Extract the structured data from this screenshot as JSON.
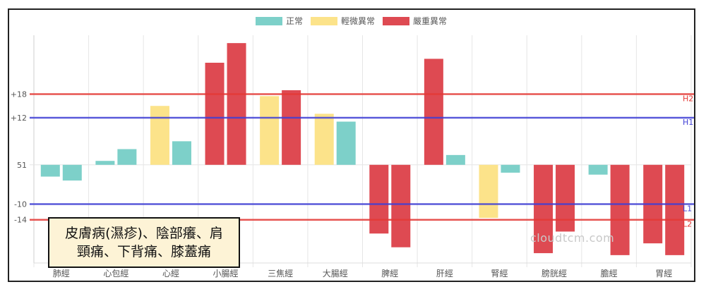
{
  "chart_data": {
    "type": "bar",
    "categories": [
      "肺經",
      "心包經",
      "心經",
      "小腸經",
      "三焦經",
      "大腸經",
      "脾經",
      "肝經",
      "腎經",
      "膀胱經",
      "膽經",
      "胃經"
    ],
    "legend": [
      {
        "name": "正常",
        "color": "#7dd0c9"
      },
      {
        "name": "輕微異常",
        "color": "#fce38a"
      },
      {
        "name": "嚴重異常",
        "color": "#de4a52"
      }
    ],
    "bars": [
      [
        {
          "v": -3,
          "c": 0
        },
        {
          "v": -4,
          "c": 0
        }
      ],
      [
        {
          "v": 1,
          "c": 0
        },
        {
          "v": 4,
          "c": 0
        }
      ],
      [
        {
          "v": 15,
          "c": 1
        },
        {
          "v": 6,
          "c": 0
        }
      ],
      [
        {
          "v": 26,
          "c": 2
        },
        {
          "v": 31,
          "c": 2
        }
      ],
      [
        {
          "v": 17.5,
          "c": 1
        },
        {
          "v": 19,
          "c": 2
        }
      ],
      [
        {
          "v": 13,
          "c": 1
        },
        {
          "v": 11,
          "c": 0
        }
      ],
      [
        {
          "v": -17.5,
          "c": 2
        },
        {
          "v": -21,
          "c": 2
        }
      ],
      [
        {
          "v": 27,
          "c": 2
        },
        {
          "v": 2.5,
          "c": 0
        }
      ],
      [
        {
          "v": -13.5,
          "c": 1
        },
        {
          "v": -2,
          "c": 0
        }
      ],
      [
        {
          "v": -22.5,
          "c": 2
        },
        {
          "v": -17,
          "c": 2
        }
      ],
      [
        {
          "v": -2.5,
          "c": 0
        },
        {
          "v": -23,
          "c": 2
        }
      ],
      [
        {
          "v": -20,
          "c": 2
        },
        {
          "v": -23,
          "c": 2
        }
      ]
    ],
    "ylim": [
      -25,
      33
    ],
    "y_ticks": [
      {
        "v": 18,
        "label": "+18"
      },
      {
        "v": 12,
        "label": "+12"
      },
      {
        "v": 0,
        "label": "51"
      },
      {
        "v": -10,
        "label": "-10"
      },
      {
        "v": -14,
        "label": "-14"
      }
    ],
    "reference_lines": [
      {
        "name": "H2",
        "v": 18,
        "color": "#e53935"
      },
      {
        "name": "H1",
        "v": 12,
        "color": "#3f3fd6"
      },
      {
        "name": "L1",
        "v": -10,
        "color": "#3f3fd6"
      },
      {
        "name": "L2",
        "v": -14,
        "color": "#e53935"
      }
    ],
    "grid": true,
    "legend_position": "top"
  },
  "note": {
    "line1": "皮膚病(濕疹)、陰部癢、肩",
    "line2": "頸痛、下背痛、膝蓋痛"
  },
  "watermark": "cloudtcm.com"
}
